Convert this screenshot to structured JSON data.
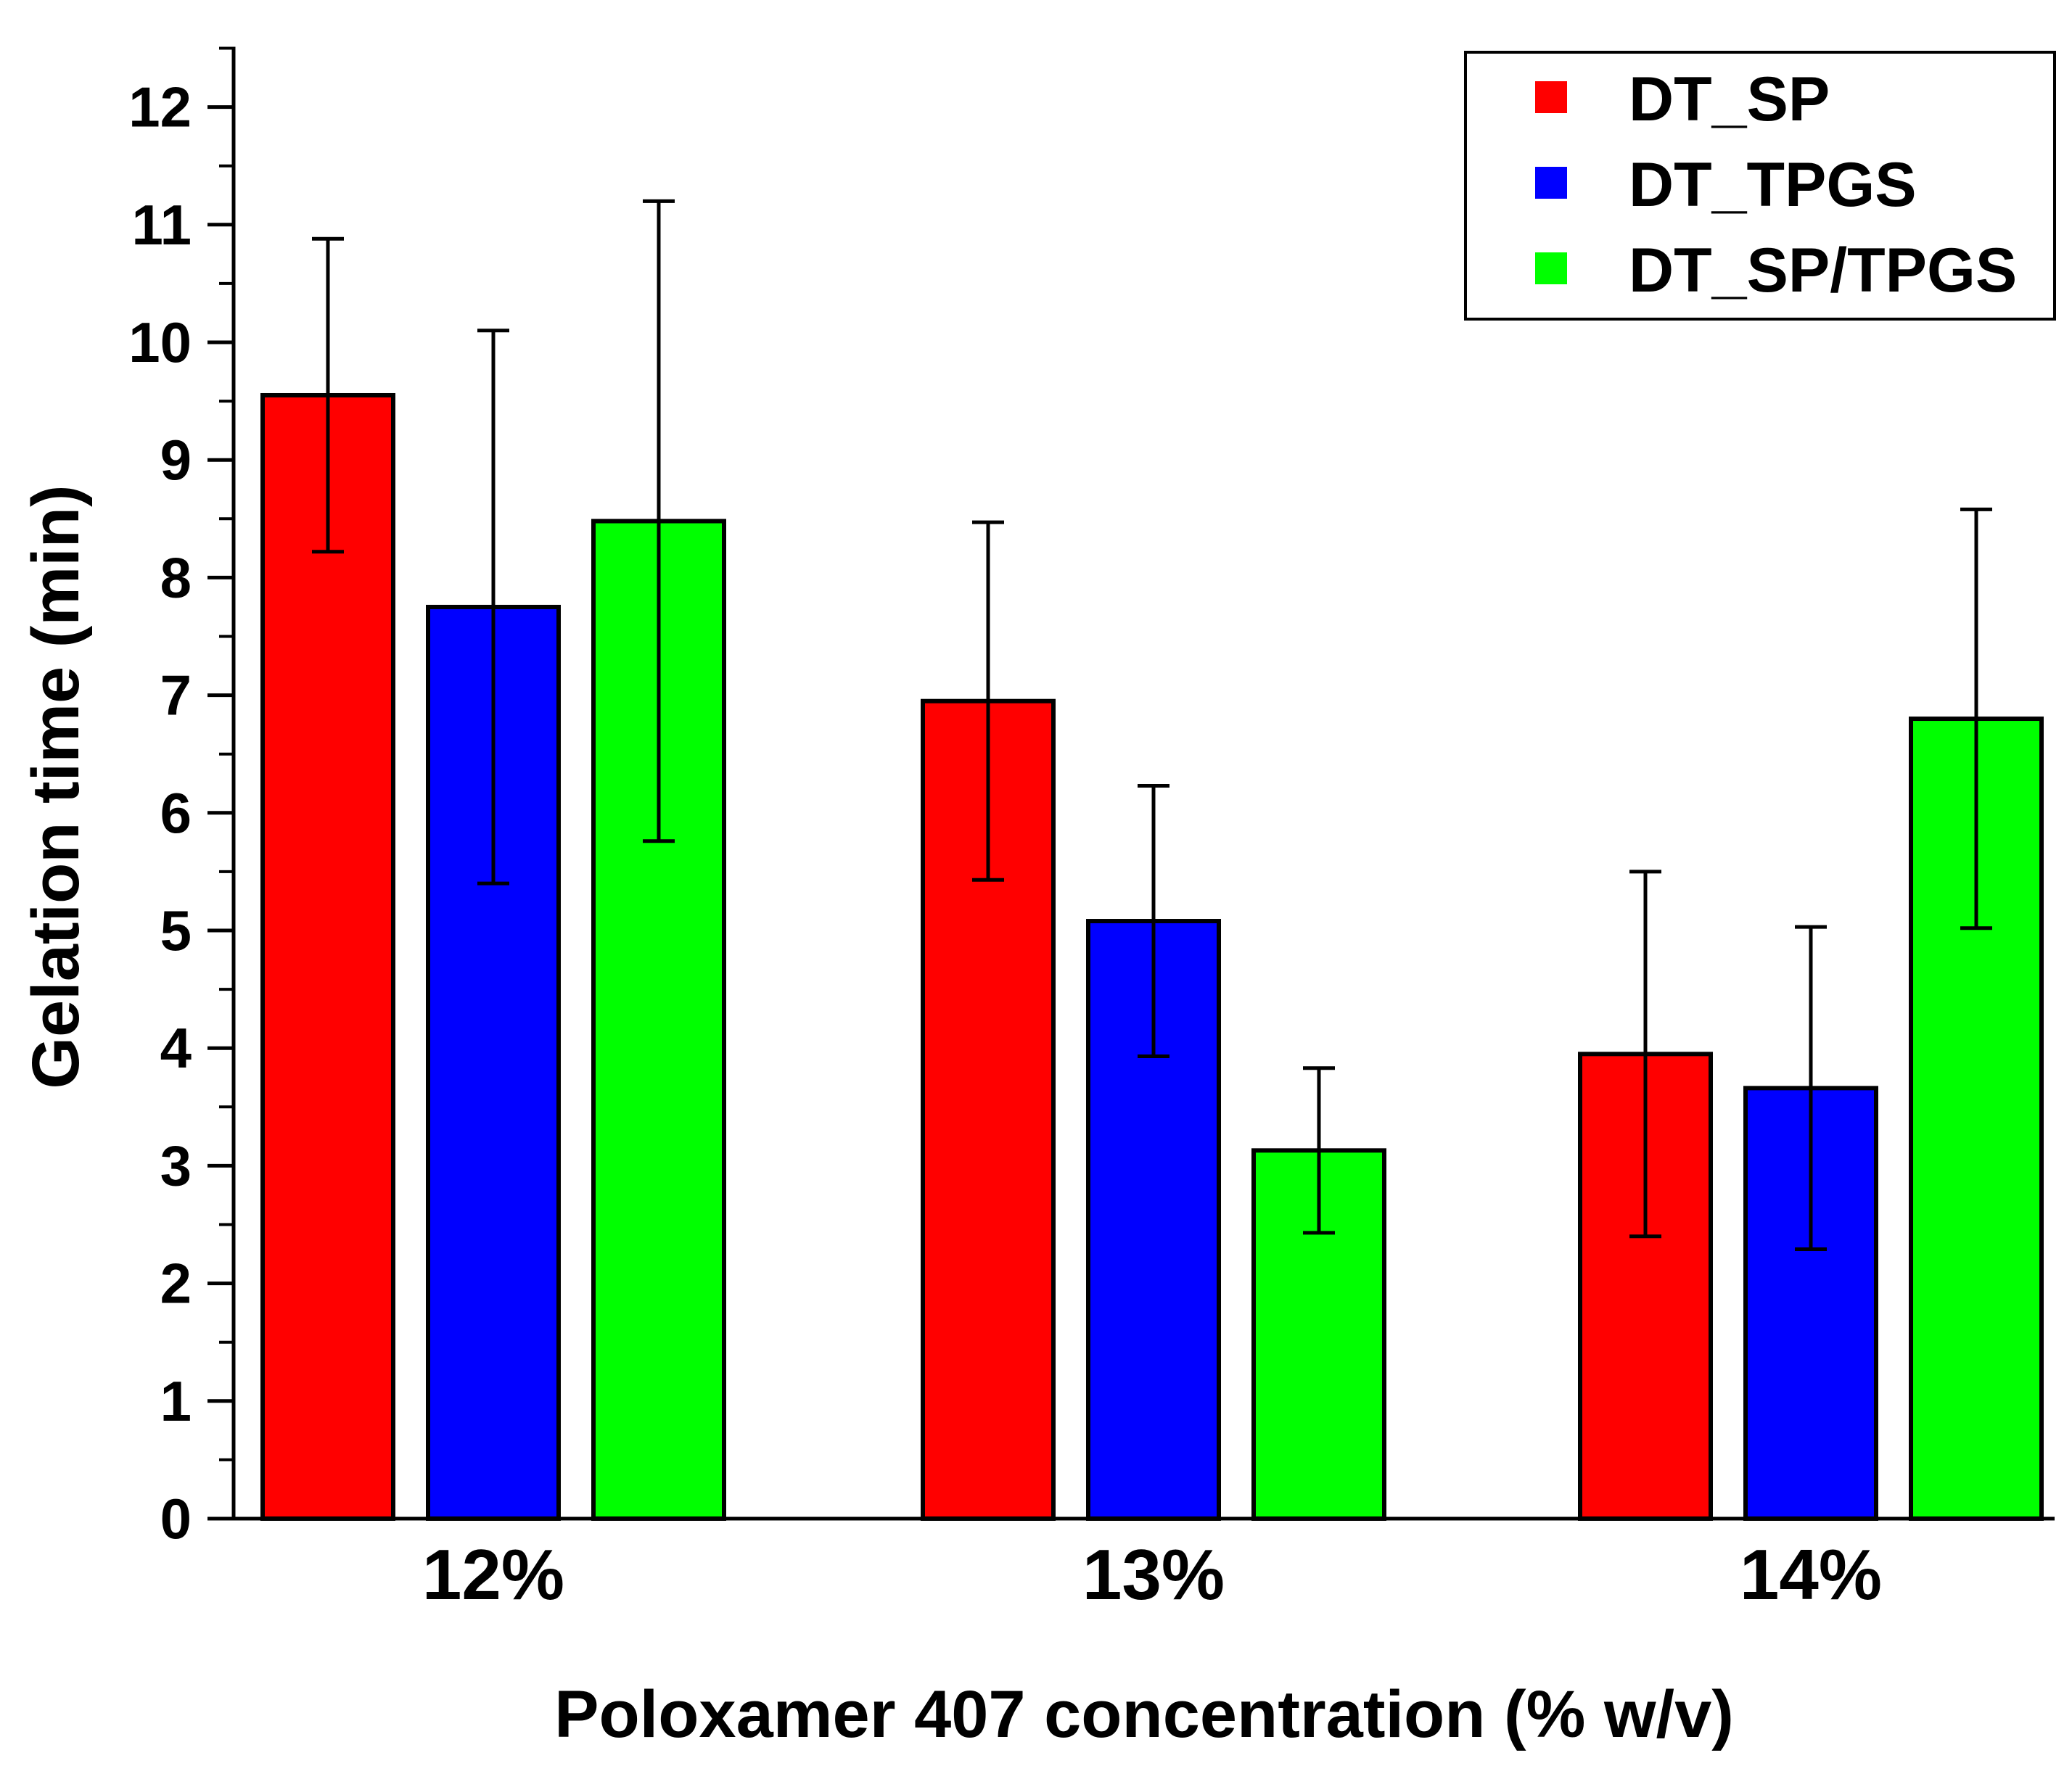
{
  "chart_data": {
    "type": "bar",
    "title": "",
    "xlabel": "Poloxamer 407 concentration (% w/v)",
    "ylabel": "Gelation time (min)",
    "ylim": [
      0,
      12.5
    ],
    "yticks": [
      0,
      1,
      2,
      3,
      4,
      5,
      6,
      7,
      8,
      9,
      10,
      11,
      12
    ],
    "yminor_step": 0.5,
    "categories": [
      "12%",
      "13%",
      "14%"
    ],
    "series": [
      {
        "name": "DT_SP",
        "color": "#ff0000",
        "values": [
          9.55,
          6.95,
          3.95
        ],
        "errors": [
          1.33,
          1.52,
          1.55
        ]
      },
      {
        "name": "DT_TPGS",
        "color": "#0000ff",
        "values": [
          7.75,
          5.08,
          3.66
        ],
        "errors": [
          2.35,
          1.15,
          1.37
        ]
      },
      {
        "name": "DT_SP/TPGS",
        "color": "#00ff00",
        "values": [
          8.48,
          3.13,
          6.8
        ],
        "errors": [
          2.72,
          0.7,
          1.78
        ]
      }
    ],
    "legend_position": "top-right",
    "grid": false
  }
}
